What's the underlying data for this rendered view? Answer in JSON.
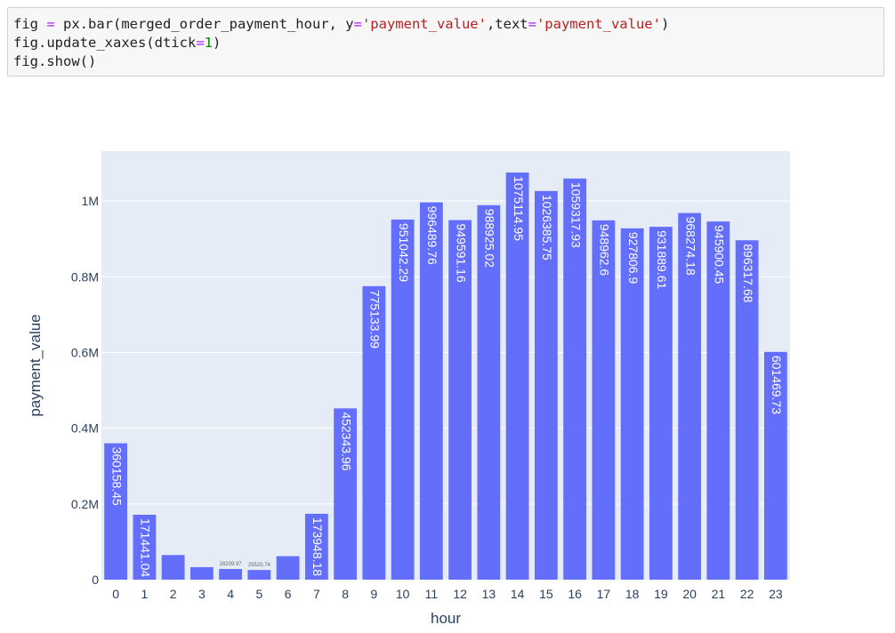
{
  "code": {
    "lines": [
      [
        {
          "t": "fig "
        },
        {
          "t": "=",
          "c": "op"
        },
        {
          "t": " px.bar(merged_order_payment_hour, y"
        },
        {
          "t": "=",
          "c": "op"
        },
        {
          "t": "'payment_value'",
          "c": "str"
        },
        {
          "t": ",text"
        },
        {
          "t": "=",
          "c": "op"
        },
        {
          "t": "'payment_value'",
          "c": "str"
        },
        {
          "t": ")"
        }
      ],
      [
        {
          "t": "fig.update_xaxes(dtick"
        },
        {
          "t": "=",
          "c": "op"
        },
        {
          "t": "1",
          "c": "num"
        },
        {
          "t": ")"
        }
      ],
      [
        {
          "t": "fig.show()"
        }
      ]
    ]
  },
  "chart_data": {
    "type": "bar",
    "xlabel": "hour",
    "ylabel": "payment_value",
    "categories": [
      "0",
      "1",
      "2",
      "3",
      "4",
      "5",
      "6",
      "7",
      "8",
      "9",
      "10",
      "11",
      "12",
      "13",
      "14",
      "15",
      "16",
      "17",
      "18",
      "19",
      "20",
      "21",
      "22",
      "23"
    ],
    "values": [
      360158.45,
      171441.04,
      65000,
      33000,
      28209.97,
      25520.74,
      62000,
      173948.18,
      452343.96,
      775133.99,
      951042.29,
      996489.76,
      949591.16,
      988925.02,
      1075114.95,
      1026385.75,
      1059317.93,
      948962.6,
      927806.9,
      931889.61,
      968274.18,
      945900.45,
      896317.68,
      601469.73
    ],
    "text": [
      "360158.45",
      "171441.04",
      "",
      "",
      "28209.97",
      "25520.74",
      "",
      "173948.18",
      "452343.96",
      "775133.99",
      "951042.29",
      "996489.76",
      "949591.16",
      "988925.02",
      "1075114.95",
      "1026385.75",
      "1059317.93",
      "948962.6",
      "927806.9",
      "931889.61",
      "968274.18",
      "945900.45",
      "896317.68",
      "601469.73"
    ],
    "yticks": [
      0,
      200000,
      400000,
      600000,
      800000,
      1000000
    ],
    "ytick_labels": [
      "0",
      "0.2M",
      "0.4M",
      "0.6M",
      "0.8M",
      "1M"
    ],
    "ylim": [
      0,
      1131700
    ],
    "grid": true,
    "colors": {
      "bar": "#636efa",
      "plot_bg": "#e5ecf6",
      "grid": "#ffffff",
      "text": "#2a3f5f"
    }
  }
}
